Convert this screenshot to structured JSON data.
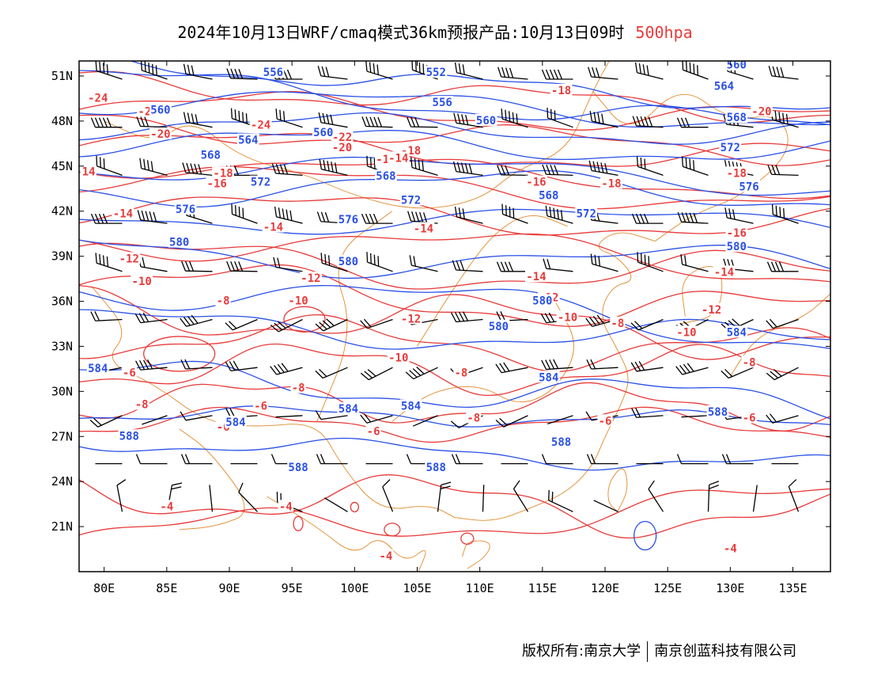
{
  "title": {
    "main": "2024年10月13日WRF/cmaq模式36km预报产品:10月13日09时",
    "level": "500hpa"
  },
  "footer": {
    "left": "版权所有:南京大学",
    "right": "南京创蓝科技有限公司"
  },
  "colors": {
    "height_contour": "#2a50e6",
    "temperature_contour": "#e83a3a",
    "boundary": "#e08a2a",
    "wind_barb": "#000000"
  },
  "map": {
    "lon_range": [
      78,
      138
    ],
    "lat_range": [
      18,
      52
    ],
    "lon_ticks": [
      "80E",
      "85E",
      "90E",
      "95E",
      "100E",
      "105E",
      "110E",
      "115E",
      "120E",
      "125E",
      "130E",
      "135E"
    ],
    "lat_ticks": [
      "51N",
      "48N",
      "45N",
      "42N",
      "39N",
      "36N",
      "33N",
      "30N",
      "27N",
      "24N",
      "21N"
    ],
    "height_labels": [
      {
        "text": "556",
        "lon": 93.5,
        "lat": 51.2
      },
      {
        "text": "552",
        "lon": 106.5,
        "lat": 51.2
      },
      {
        "text": "560",
        "lon": 130.5,
        "lat": 51.7
      },
      {
        "text": "564",
        "lon": 129.5,
        "lat": 50.3
      },
      {
        "text": "560",
        "lon": 84.5,
        "lat": 48.7
      },
      {
        "text": "556",
        "lon": 107.0,
        "lat": 49.2
      },
      {
        "text": "560",
        "lon": 110.5,
        "lat": 48.0
      },
      {
        "text": "560",
        "lon": 97.5,
        "lat": 47.2
      },
      {
        "text": "564",
        "lon": 91.5,
        "lat": 46.7
      },
      {
        "text": "568",
        "lon": 88.5,
        "lat": 45.7
      },
      {
        "text": "568",
        "lon": 102.5,
        "lat": 44.3
      },
      {
        "text": "572",
        "lon": 92.5,
        "lat": 43.9
      },
      {
        "text": "572",
        "lon": 104.5,
        "lat": 42.7
      },
      {
        "text": "576",
        "lon": 86.5,
        "lat": 42.1
      },
      {
        "text": "576",
        "lon": 99.5,
        "lat": 41.4
      },
      {
        "text": "568",
        "lon": 115.5,
        "lat": 43.0
      },
      {
        "text": "572",
        "lon": 118.5,
        "lat": 41.8
      },
      {
        "text": "572",
        "lon": 130.0,
        "lat": 46.2
      },
      {
        "text": "568",
        "lon": 130.5,
        "lat": 48.2
      },
      {
        "text": "576",
        "lon": 131.5,
        "lat": 43.6
      },
      {
        "text": "580",
        "lon": 86.0,
        "lat": 39.9
      },
      {
        "text": "580",
        "lon": 99.5,
        "lat": 38.6
      },
      {
        "text": "580",
        "lon": 130.5,
        "lat": 39.6
      },
      {
        "text": "580",
        "lon": 115.0,
        "lat": 36.0
      },
      {
        "text": "580",
        "lon": 111.5,
        "lat": 34.3
      },
      {
        "text": "584",
        "lon": 79.5,
        "lat": 31.5
      },
      {
        "text": "584",
        "lon": 90.5,
        "lat": 27.9
      },
      {
        "text": "584",
        "lon": 99.5,
        "lat": 28.8
      },
      {
        "text": "584",
        "lon": 104.5,
        "lat": 29.0
      },
      {
        "text": "584",
        "lon": 115.5,
        "lat": 30.9
      },
      {
        "text": "584",
        "lon": 130.5,
        "lat": 33.9
      },
      {
        "text": "588",
        "lon": 82.0,
        "lat": 27.0
      },
      {
        "text": "588",
        "lon": 95.5,
        "lat": 24.9
      },
      {
        "text": "588",
        "lon": 106.5,
        "lat": 24.9
      },
      {
        "text": "588",
        "lon": 116.5,
        "lat": 26.6
      },
      {
        "text": "588",
        "lon": 129.0,
        "lat": 28.6
      }
    ],
    "temperature_labels": [
      {
        "text": "-24",
        "lon": 79.5,
        "lat": 49.5
      },
      {
        "text": "-22",
        "lon": 83.5,
        "lat": 48.6
      },
      {
        "text": "-24",
        "lon": 92.5,
        "lat": 47.7
      },
      {
        "text": "-22",
        "lon": 99.0,
        "lat": 46.9
      },
      {
        "text": "-20",
        "lon": 99.0,
        "lat": 46.2
      },
      {
        "text": "-18",
        "lon": 104.5,
        "lat": 46.0
      },
      {
        "text": "-16",
        "lon": 102.5,
        "lat": 45.4
      },
      {
        "text": "-14",
        "lon": 103.5,
        "lat": 45.5
      },
      {
        "text": "-20",
        "lon": 84.5,
        "lat": 47.1
      },
      {
        "text": "-14",
        "lon": 78.5,
        "lat": 44.6
      },
      {
        "text": "-18",
        "lon": 89.5,
        "lat": 44.5
      },
      {
        "text": "-16",
        "lon": 89.0,
        "lat": 43.8
      },
      {
        "text": "-18",
        "lon": 116.5,
        "lat": 50.0
      },
      {
        "text": "-20",
        "lon": 132.5,
        "lat": 48.6
      },
      {
        "text": "-18",
        "lon": 130.5,
        "lat": 44.5
      },
      {
        "text": "-16",
        "lon": 114.5,
        "lat": 43.9
      },
      {
        "text": "-18",
        "lon": 120.5,
        "lat": 43.8
      },
      {
        "text": "-14",
        "lon": 81.5,
        "lat": 41.8
      },
      {
        "text": "-14",
        "lon": 93.5,
        "lat": 40.9
      },
      {
        "text": "-14",
        "lon": 105.5,
        "lat": 40.8
      },
      {
        "text": "-16",
        "lon": 130.5,
        "lat": 40.5
      },
      {
        "text": "-12",
        "lon": 82.0,
        "lat": 38.8
      },
      {
        "text": "-10",
        "lon": 83.0,
        "lat": 37.3
      },
      {
        "text": "-12",
        "lon": 96.5,
        "lat": 37.5
      },
      {
        "text": "-14",
        "lon": 114.5,
        "lat": 37.6
      },
      {
        "text": "-12",
        "lon": 115.5,
        "lat": 36.2
      },
      {
        "text": "-14",
        "lon": 129.5,
        "lat": 37.9
      },
      {
        "text": "-12",
        "lon": 128.5,
        "lat": 35.4
      },
      {
        "text": "-10",
        "lon": 95.5,
        "lat": 36.0
      },
      {
        "text": "-10",
        "lon": 117.0,
        "lat": 34.9
      },
      {
        "text": "-12",
        "lon": 104.5,
        "lat": 34.8
      },
      {
        "text": "-10",
        "lon": 126.5,
        "lat": 33.9
      },
      {
        "text": "-8",
        "lon": 89.5,
        "lat": 36.0
      },
      {
        "text": "-8",
        "lon": 121.0,
        "lat": 34.5
      },
      {
        "text": "-10",
        "lon": 103.5,
        "lat": 32.2
      },
      {
        "text": "-8",
        "lon": 131.5,
        "lat": 31.9
      },
      {
        "text": "-6",
        "lon": 82.0,
        "lat": 31.2
      },
      {
        "text": "-8",
        "lon": 108.5,
        "lat": 31.2
      },
      {
        "text": "-8",
        "lon": 95.5,
        "lat": 30.2
      },
      {
        "text": "-8",
        "lon": 83.0,
        "lat": 29.1
      },
      {
        "text": "-6",
        "lon": 92.5,
        "lat": 29.0
      },
      {
        "text": "-8",
        "lon": 109.5,
        "lat": 28.2
      },
      {
        "text": "-6",
        "lon": 89.5,
        "lat": 27.6
      },
      {
        "text": "-6",
        "lon": 101.5,
        "lat": 27.3
      },
      {
        "text": "-6",
        "lon": 120.0,
        "lat": 28.0
      },
      {
        "text": "-6",
        "lon": 131.5,
        "lat": 28.2
      },
      {
        "text": "-4",
        "lon": 85.0,
        "lat": 22.3
      },
      {
        "text": "-4",
        "lon": 94.5,
        "lat": 22.3
      },
      {
        "text": "-4",
        "lon": 102.5,
        "lat": 19.0
      },
      {
        "text": "-4",
        "lon": 130.0,
        "lat": 19.5
      }
    ]
  }
}
